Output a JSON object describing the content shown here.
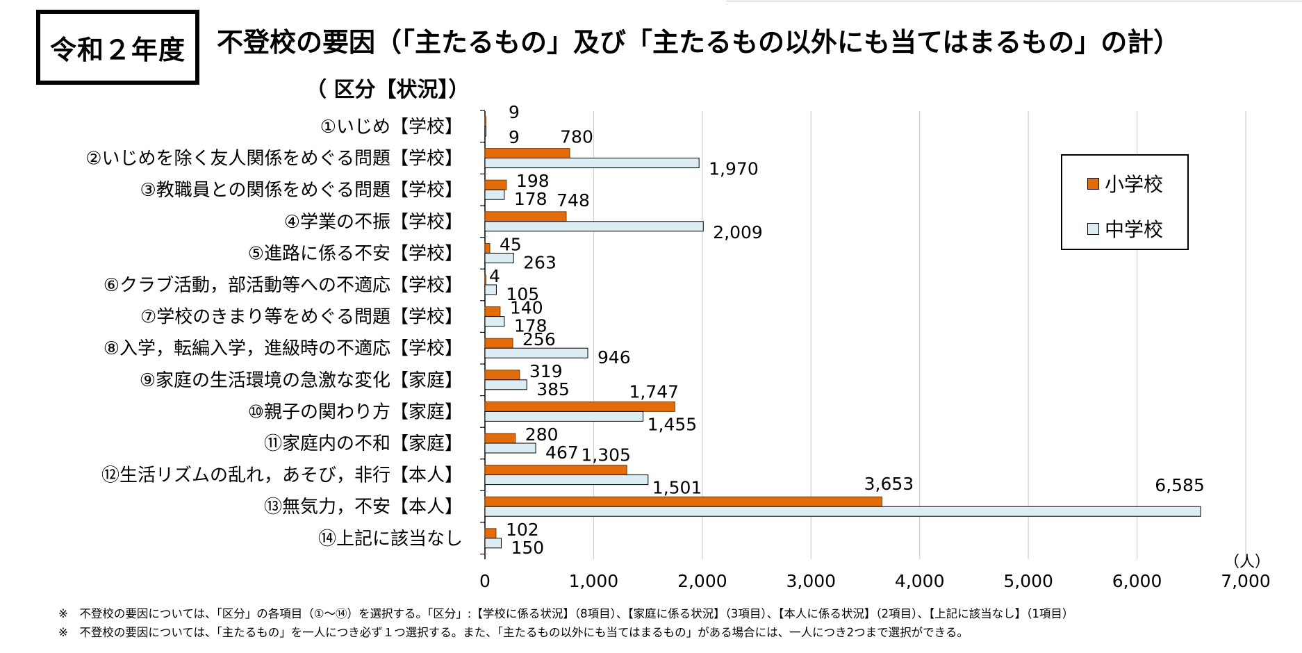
{
  "header": {
    "year_badge": "令和２年度",
    "title": "不登校の要因（「主たるもの」及び「主たるもの以外にも当てはまるもの」の計）",
    "subtitle": "（ 区分【状況】）"
  },
  "chart_data": {
    "type": "bar",
    "orientation": "horizontal",
    "title": "不登校の要因（「主たるもの」及び「主たるもの以外にも当てはまるもの」の計）",
    "subtitle": "（ 区分【状況】）",
    "categories": [
      "①いじめ【学校】",
      "②いじめを除く友人関係をめぐる問題【学校】",
      "③教職員との関係をめぐる問題【学校】",
      "④学業の不振【学校】",
      "⑤進路に係る不安【学校】",
      "⑥クラブ活動，部活動等への不適応【学校】",
      "⑦学校のきまり等をめぐる問題【学校】",
      "⑧入学，転編入学，進級時の不適応【学校】",
      "⑨家庭の生活環境の急激な変化【家庭】",
      "⑩親子の関わり方【家庭】",
      "⑪家庭内の不和【家庭】",
      "⑫生活リズムの乱れ，あそび，非行【本人】",
      "⑬無気力，不安【本人】",
      "⑭上記に該当なし"
    ],
    "series": [
      {
        "name": "小学校",
        "color": "#E36C0A",
        "values": [
          9,
          780,
          198,
          748,
          45,
          4,
          140,
          256,
          319,
          1747,
          280,
          1305,
          3653,
          102
        ],
        "labels": [
          "9",
          "780",
          "198",
          "748",
          "45",
          "4",
          "140",
          "256",
          "319",
          "1,747",
          "280",
          "1,305",
          "3,653",
          "102"
        ]
      },
      {
        "name": "中学校",
        "color": "#DCEEF3",
        "values": [
          9,
          1970,
          178,
          2009,
          263,
          105,
          178,
          946,
          385,
          1455,
          467,
          1501,
          6585,
          150
        ],
        "labels": [
          "9",
          "1,970",
          "178",
          "2,009",
          "263",
          "105",
          "178",
          "946",
          "385",
          "1,455",
          "467",
          "1,501",
          "6,585",
          "150"
        ]
      }
    ],
    "xlim": [
      0,
      7000
    ],
    "xticks": [
      0,
      1000,
      2000,
      3000,
      4000,
      5000,
      6000,
      7000
    ],
    "xtick_labels": [
      "0",
      "1,000",
      "2,000",
      "3,000",
      "4,000",
      "5,000",
      "6,000",
      "7,000"
    ],
    "unit_label": "（人）",
    "grid": true,
    "legend_position": "right"
  },
  "legend": {
    "items": [
      {
        "label": "小学校",
        "color": "#E36C0A"
      },
      {
        "label": "中学校",
        "color": "#DCEEF3"
      }
    ]
  },
  "notes": [
    "※　不登校の要因については、「区分」の各項目（①～⑭）を選択する。「区分」:【学校に係る状況】（8項目）、【家庭に係る状況】（3項目）、【本人に係る状況】（2項目）、【上記に該当なし】（1項目）",
    "※　不登校の要因については、「主たるもの」を一人につき必ず１つ選択する。また、「主たるもの以外にも当てはまるもの」がある場合には、一人につき2つまで選択ができる。"
  ]
}
